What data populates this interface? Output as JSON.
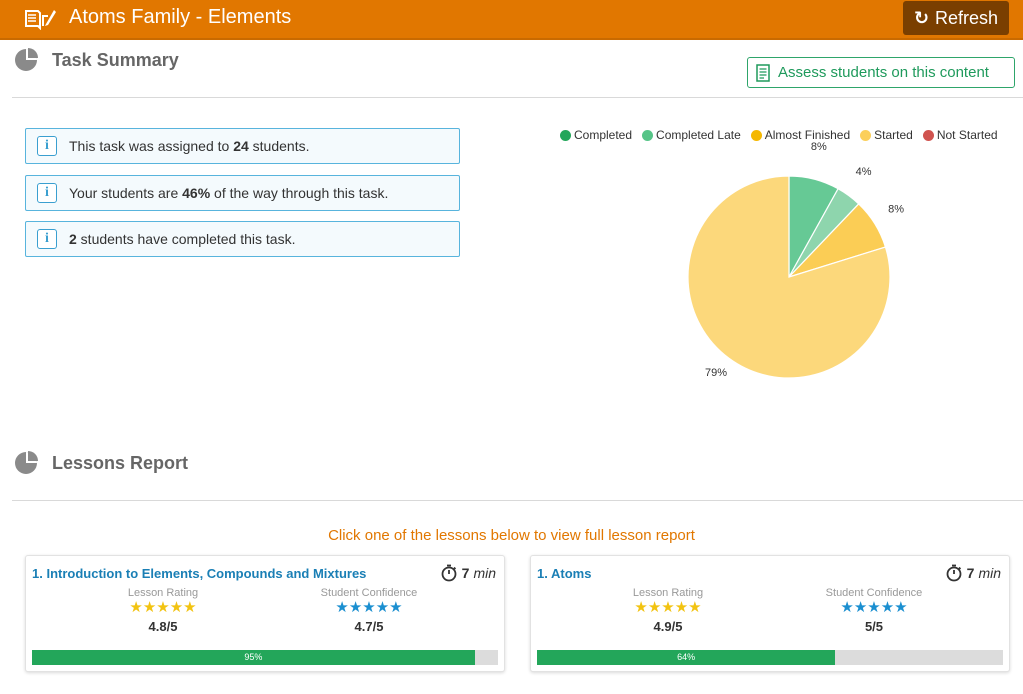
{
  "header": {
    "title": "Atoms Family - Elements",
    "refresh_label": "Refresh",
    "bg_color": "#e17700"
  },
  "task_summary": {
    "title": "Task Summary",
    "assess_label": "Assess students on this content",
    "info": [
      {
        "before": "This task was assigned to ",
        "bold": "24",
        "after": " students."
      },
      {
        "before": "Your students are ",
        "bold": "46%",
        "after": " of the way through this task."
      },
      {
        "before": "",
        "bold": "2",
        "after": " students have completed this task."
      }
    ]
  },
  "chart_data": {
    "type": "pie",
    "legend_position": "top",
    "legend": [
      {
        "label": "Completed",
        "color": "#23a65a"
      },
      {
        "label": "Completed Late",
        "color": "#56c487"
      },
      {
        "label": "Almost Finished",
        "color": "#f5b800"
      },
      {
        "label": "Started",
        "color": "#fbcf5b"
      },
      {
        "label": "Not Started",
        "color": "#d0534f"
      }
    ],
    "slices": [
      {
        "label": "Completed",
        "value": 8,
        "display": "8%",
        "color": "#66c995"
      },
      {
        "label": "Completed Late",
        "value": 4,
        "display": "4%",
        "color": "#8ed5ad"
      },
      {
        "label": "Almost Finished",
        "value": 8,
        "display": "8%",
        "color": "#fbcd55"
      },
      {
        "label": "Started",
        "value": 79,
        "display": "79%",
        "color": "#fcd87b"
      }
    ]
  },
  "lessons_report": {
    "title": "Lessons Report",
    "prompt": "Click one of the lessons below to view full lesson report",
    "rating_label": "Lesson Rating",
    "confidence_label": "Student Confidence",
    "lessons": [
      {
        "title": "1. Introduction to Elements, Compounds and Mixtures",
        "minutes": "7",
        "unit": "min",
        "rating": "4.8/5",
        "rating_stars": "★★★★★",
        "confidence": "4.7/5",
        "confidence_stars": "★★★★★",
        "progress": 95,
        "progress_label": "95%"
      },
      {
        "title": "1. Atoms",
        "minutes": "7",
        "unit": "min",
        "rating": "4.9/5",
        "rating_stars": "★★★★★",
        "confidence": "5/5",
        "confidence_stars": "★★★★★",
        "progress": 64,
        "progress_label": "64%"
      }
    ]
  }
}
